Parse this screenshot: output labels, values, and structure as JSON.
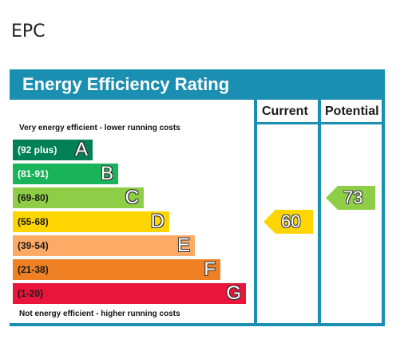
{
  "page": {
    "heading": "EPC"
  },
  "epc": {
    "title": "Energy Efficiency Rating",
    "columns": {
      "current": "Current",
      "potential": "Potential"
    },
    "top_caption": "Very energy efficient - lower running costs",
    "bottom_caption": "Not energy efficient - higher running costs",
    "bands": [
      {
        "range": "(92 plus)",
        "letter": "A",
        "color": "#008054",
        "text_color": "#ffffff"
      },
      {
        "range": "(81-91)",
        "letter": "B",
        "color": "#19b459",
        "text_color": "#ffffff"
      },
      {
        "range": "(69-80)",
        "letter": "C",
        "color": "#8dce46",
        "text_color": "#1a1a1a"
      },
      {
        "range": "(55-68)",
        "letter": "D",
        "color": "#ffd500",
        "text_color": "#1a1a1a"
      },
      {
        "range": "(39-54)",
        "letter": "E",
        "color": "#fcaa65",
        "text_color": "#1a1a1a"
      },
      {
        "range": "(21-38)",
        "letter": "F",
        "color": "#ef8023",
        "text_color": "#1a1a1a"
      },
      {
        "range": "(1-20)",
        "letter": "G",
        "color": "#e9153b",
        "text_color": "#1a1a1a"
      }
    ],
    "current": {
      "value": "60",
      "band": "D",
      "color": "#ffd500"
    },
    "potential": {
      "value": "73",
      "band": "C",
      "color": "#8dce46"
    }
  }
}
